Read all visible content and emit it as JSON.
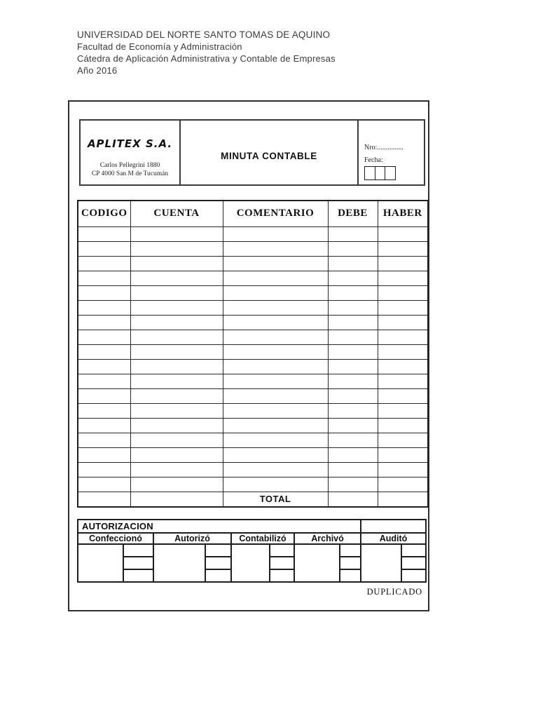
{
  "page_header": {
    "lines": [
      "UNIVERSIDAD DEL NORTE SANTO TOMAS DE AQUINO",
      "Facultad de Economía y Administración",
      "Cátedra de Aplicación Administrativa y Contable de Empresas",
      "Año 2016"
    ]
  },
  "form_header": {
    "company_name": "APLITEX S.A.",
    "company_address_line1": "Carlos Pellegrini 1880",
    "company_address_line2": "CP 4000 San M de Tucumán",
    "form_title": "MINUTA CONTABLE",
    "nro_label": "Nro:",
    "nro_dots": "...............",
    "fecha_label": "Fecha:",
    "date_box_count": 3
  },
  "ledger_table": {
    "headers": [
      "CODIGO",
      "CUENTA",
      "COMENTARIO",
      "DEBE",
      "HABER"
    ],
    "empty_row_count": 18,
    "total_label": "TOTAL"
  },
  "authorization": {
    "section_title": "AUTORIZACION",
    "columns": [
      "Confeccionó",
      "Autorizó",
      "Contabilizó",
      "Archivó",
      "Auditó"
    ],
    "stamp_rows_per_column": 3
  },
  "footer": {
    "copy_label": "DUPLICADO"
  }
}
